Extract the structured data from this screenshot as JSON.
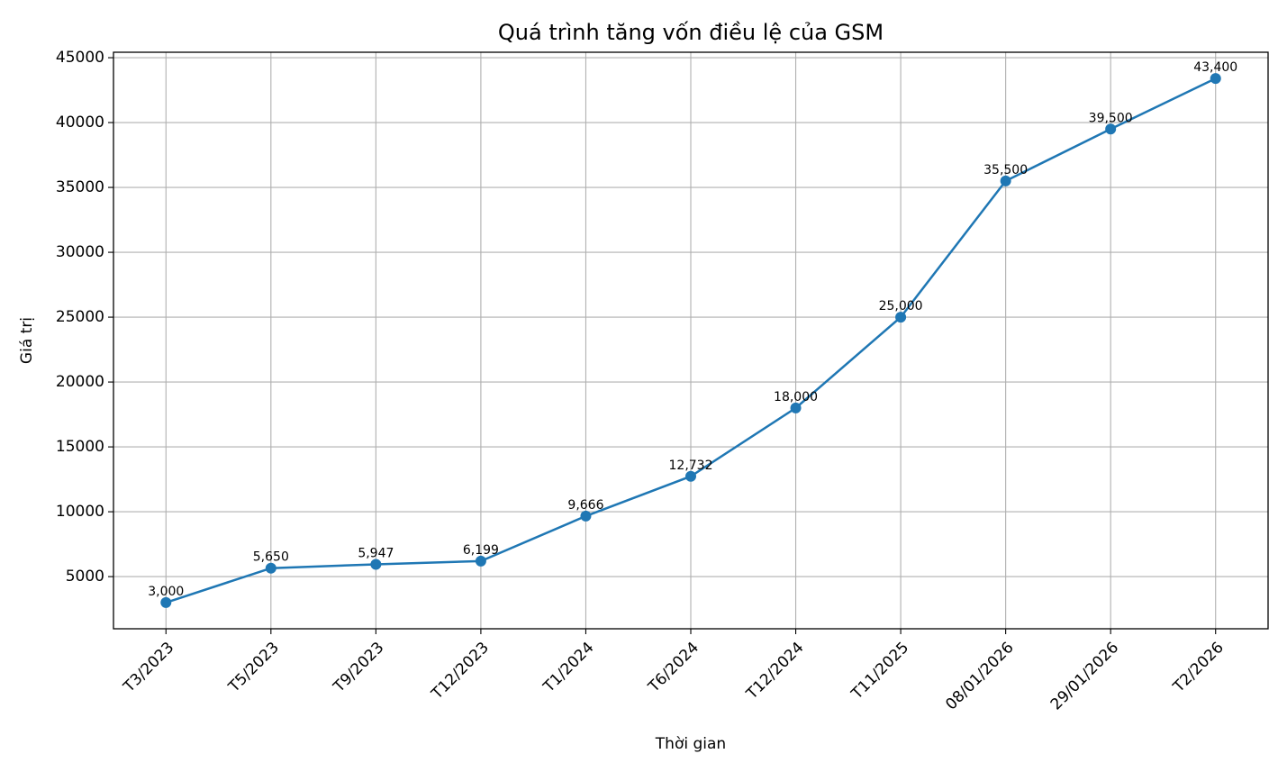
{
  "chart_data": {
    "type": "line",
    "title": "Quá trình tăng vốn điều lệ của GSM",
    "x_label": "Thời gian",
    "y_label": "Giá trị",
    "categories": [
      "T3/2023",
      "T5/2023",
      "T9/2023",
      "T12/2023",
      "T1/2024",
      "T6/2024",
      "T12/2024",
      "T11/2025",
      "08/01/2026",
      "29/01/2026",
      "T2/2026"
    ],
    "series": [
      {
        "color": "#1f77b4",
        "values": [
          3000,
          5650,
          5947,
          6199,
          9666,
          12732,
          18000,
          25000,
          35500,
          39500,
          43400
        ],
        "value_labels": [
          "3,000",
          "5,650",
          "5,947",
          "6,199",
          "9,666",
          "12,732",
          "18,000",
          "25,000",
          "35,500",
          "39,500",
          "43,400"
        ]
      }
    ],
    "ylim": [
      980,
      45420
    ],
    "yticks": [
      5000,
      10000,
      15000,
      20000,
      25000,
      30000,
      35000,
      40000,
      45000
    ],
    "grid": true
  }
}
